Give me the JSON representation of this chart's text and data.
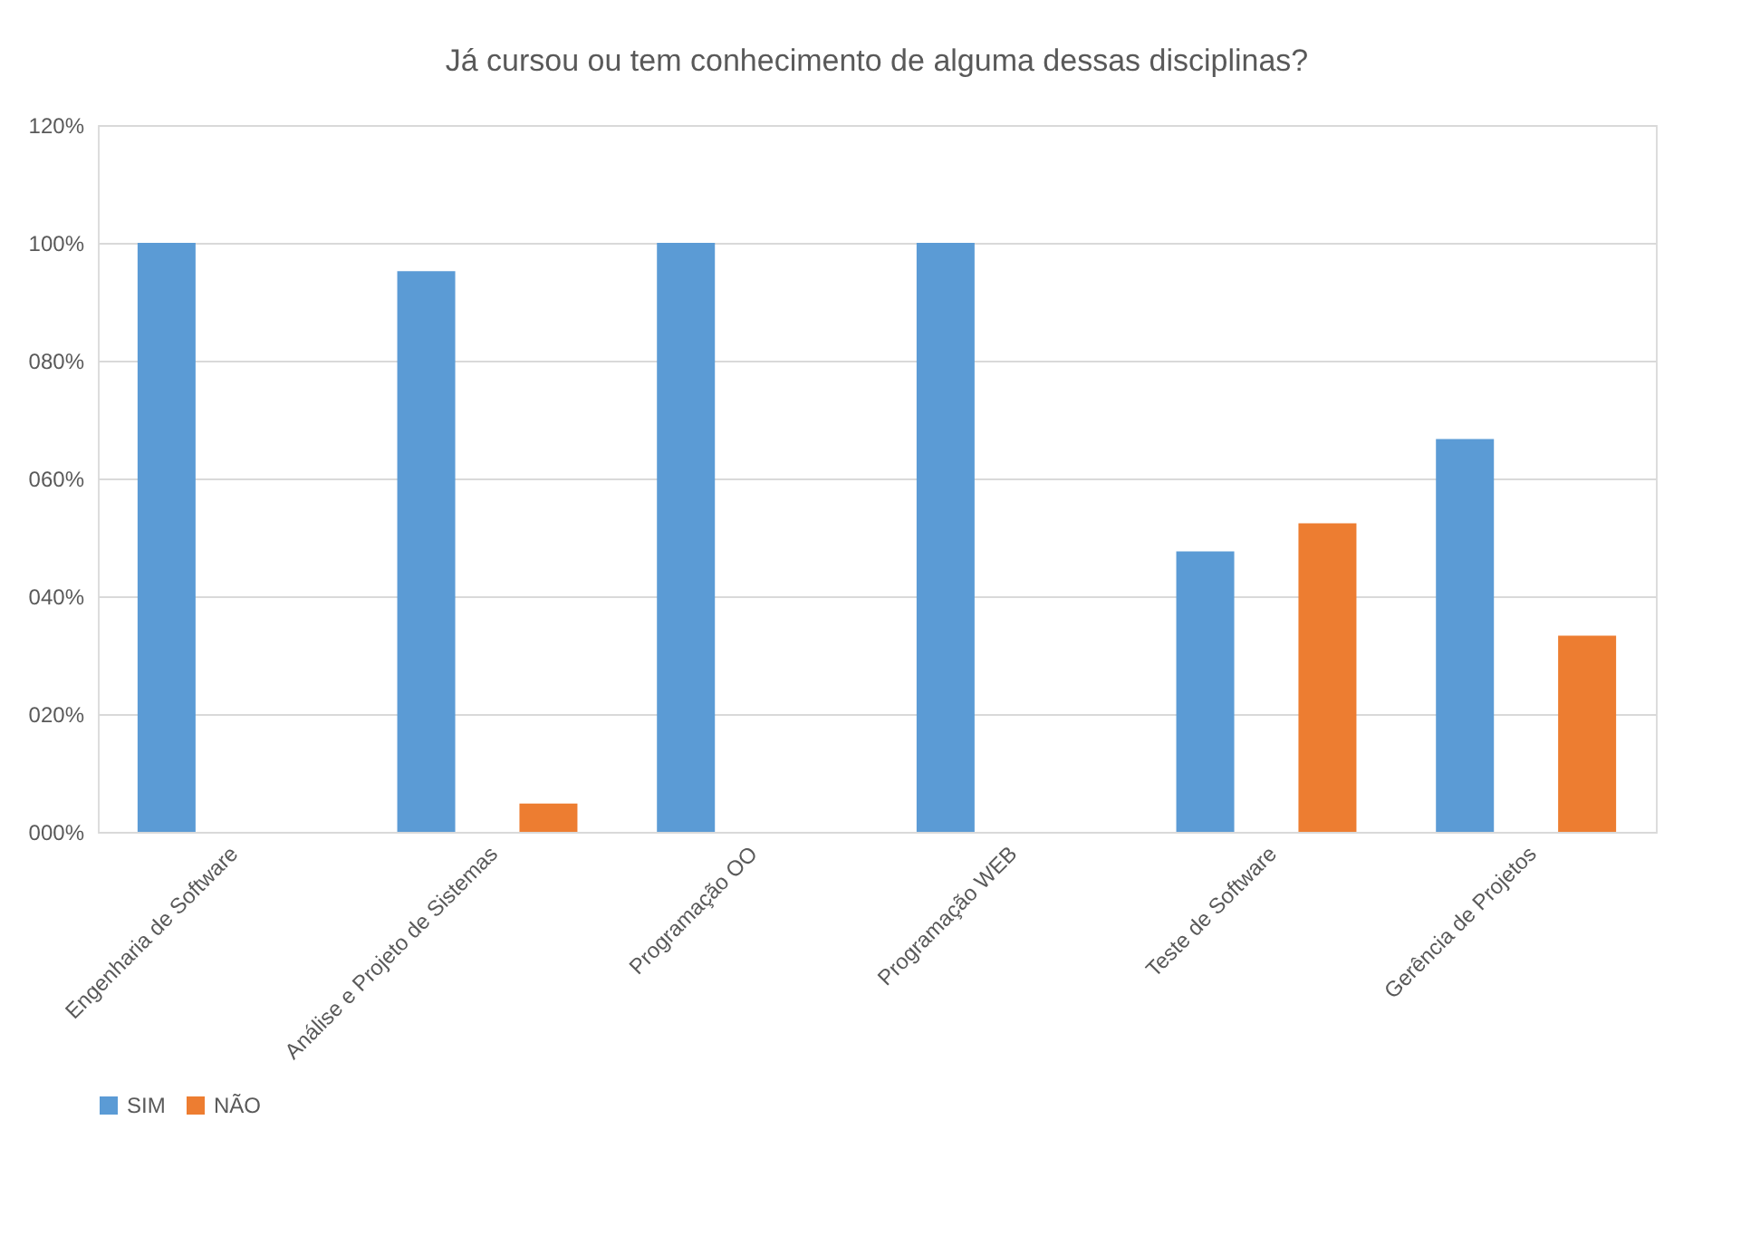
{
  "chart_data": {
    "type": "bar",
    "title": "Já cursou ou tem conhecimento de alguma dessas disciplinas?",
    "categories": [
      "Engenharia de Software",
      "Análise e Projeto de Sistemas",
      "Programação OO",
      "Programação WEB",
      "Teste de Software",
      "Gerência de Projetos"
    ],
    "series": [
      {
        "name": "SIM",
        "color": "#5b9bd5",
        "values": [
          100,
          95.2,
          100,
          100,
          47.6,
          66.7
        ]
      },
      {
        "name": "NÃO",
        "color": "#ed7d31",
        "values": [
          0,
          4.8,
          0,
          0,
          52.4,
          33.3
        ]
      }
    ],
    "ylim": [
      0,
      120
    ],
    "yticks": [
      {
        "value": 0,
        "label": "000%"
      },
      {
        "value": 20,
        "label": "020%"
      },
      {
        "value": 40,
        "label": "040%"
      },
      {
        "value": 60,
        "label": "060%"
      },
      {
        "value": 80,
        "label": "080%"
      },
      {
        "value": 100,
        "label": "100%"
      },
      {
        "value": 120,
        "label": "120%"
      }
    ],
    "grid": "y",
    "legend": "bottom"
  }
}
